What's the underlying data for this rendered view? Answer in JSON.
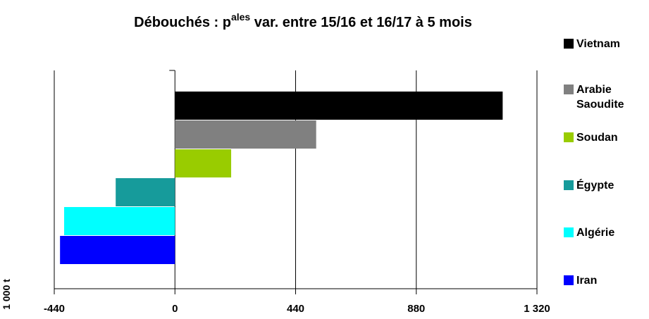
{
  "chart_data": {
    "type": "hbar",
    "title_parts": [
      "Débouchés : p",
      "ales",
      " var. entre 15/16 et 16/17 à 5 mois"
    ],
    "xlabel": "1 000 t",
    "categories": [
      "Vietnam",
      "Arabie Saoudite",
      "Soudan",
      "Égypte",
      "Algérie",
      "Iran"
    ],
    "values": [
      1195,
      515,
      205,
      -216,
      -404,
      -419
    ],
    "colors": [
      "#000000",
      "#808080",
      "#99cc00",
      "#169b9b",
      "#00ffff",
      "#0000ff"
    ],
    "xlim": [
      -440,
      1320
    ],
    "xticks": [
      -440,
      0,
      440,
      880,
      {
        "value": 1320,
        "label": "1 320"
      }
    ],
    "grid": true
  }
}
